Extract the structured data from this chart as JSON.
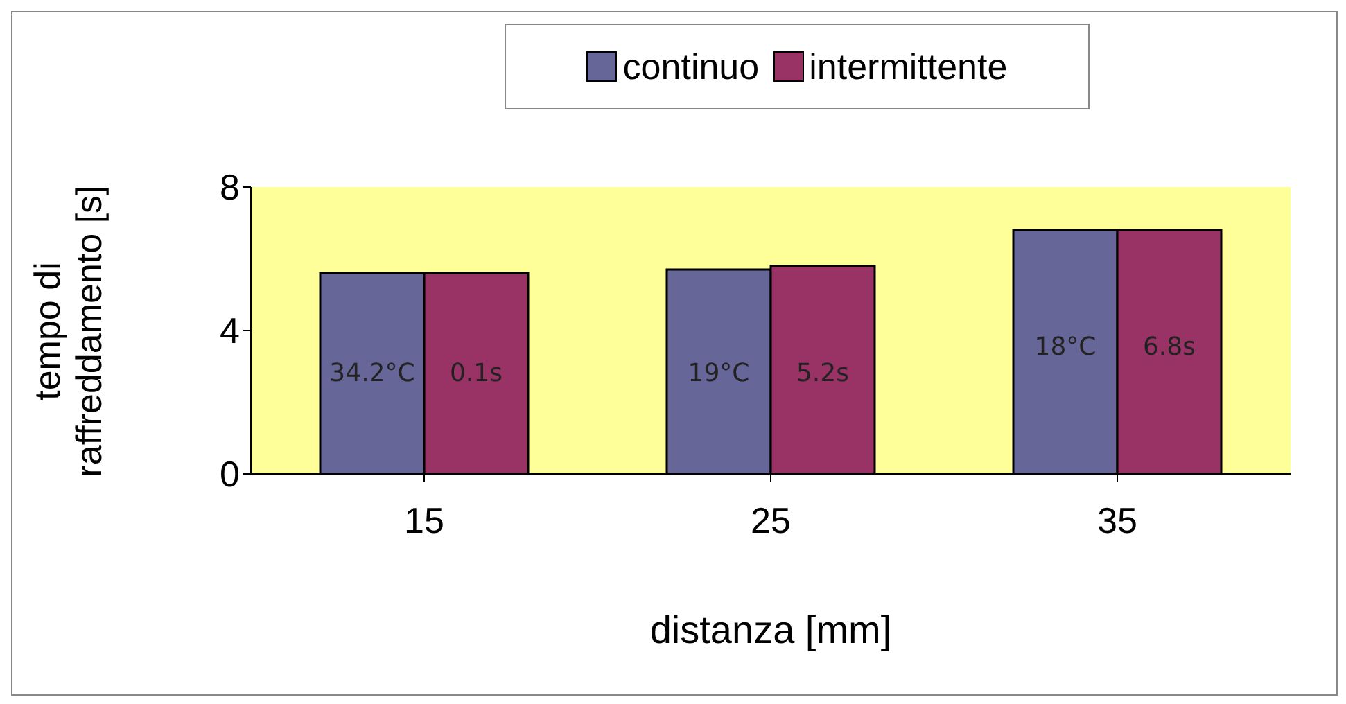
{
  "chart_data": {
    "type": "bar",
    "xlabel": "distanza [mm]",
    "ylabel": "tempo di raffreddamento [s]",
    "categories": [
      "15",
      "25",
      "35"
    ],
    "series": [
      {
        "name": "continuo",
        "color": "#666699",
        "values": [
          5.6,
          5.7,
          6.8
        ]
      },
      {
        "name": "intermittente",
        "color": "#993366",
        "values": [
          5.6,
          5.8,
          6.8
        ]
      }
    ],
    "ylim": [
      0,
      8
    ],
    "yticks": [
      0,
      4,
      8
    ],
    "legend": "top",
    "annotations": [
      {
        "text": "34.2°C",
        "x": "15",
        "y": 2.8
      },
      {
        "text": "0.1s",
        "x": "15",
        "y": 2.8
      },
      {
        "text": "19°C",
        "x": "25",
        "y": 2.8
      },
      {
        "text": "5.2s",
        "x": "25",
        "y": 2.8
      },
      {
        "text": "18°C",
        "x": "35",
        "y": 3.5
      },
      {
        "text": "6.8s",
        "x": "35",
        "y": 3.5
      }
    ]
  }
}
